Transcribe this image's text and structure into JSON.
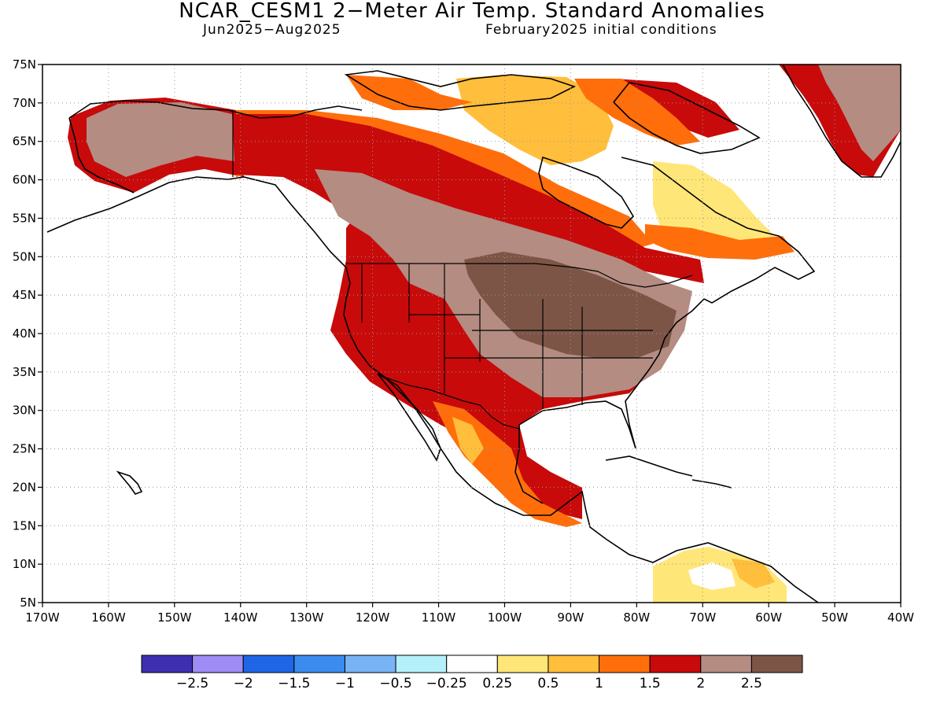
{
  "header": {
    "title": "NCAR_CESM1 2−Meter Air Temp. Standard Anomalies",
    "subtitle_left": "Jun2025−Aug2025",
    "subtitle_right": "February2025 initial conditions"
  },
  "map": {
    "lat_labels": [
      "75N",
      "70N",
      "65N",
      "60N",
      "55N",
      "50N",
      "45N",
      "40N",
      "35N",
      "30N",
      "25N",
      "20N",
      "15N",
      "10N",
      "5N"
    ],
    "lon_labels": [
      "170W",
      "160W",
      "150W",
      "140W",
      "130W",
      "120W",
      "110W",
      "100W",
      "90W",
      "80W",
      "70W",
      "60W",
      "50W",
      "40W"
    ],
    "lat_range": [
      5,
      75
    ],
    "lon_range": [
      -170,
      -40
    ],
    "grid": "dotted"
  },
  "colorbar": {
    "colors": [
      "#3d2fb0",
      "#a08cf5",
      "#1f66e6",
      "#3c8cf0",
      "#78b4f5",
      "#b4f0fa",
      "#ffffff",
      "#ffe678",
      "#ffbe3c",
      "#ff6e0a",
      "#c80a0a",
      "#b48c82",
      "#7d5546"
    ],
    "labels": [
      "−2.5",
      "−2",
      "−1.5",
      "−1",
      "−0.5",
      "−0.25",
      "0.25",
      "0.5",
      "1",
      "1.5",
      "2",
      "2.5"
    ]
  },
  "anomaly_regions": [
    {
      "name": "alaska-interior",
      "level": 2.5
    },
    {
      "name": "western-canada",
      "level": 2.5
    },
    {
      "name": "central-us",
      "level": 2.5
    },
    {
      "name": "west-coast-us",
      "level": 2
    },
    {
      "name": "eastern-canada",
      "level": 0.5
    },
    {
      "name": "greenland",
      "level": 2.5
    },
    {
      "name": "mexico",
      "level": 1.5
    },
    {
      "name": "northern-south-america",
      "level": 0.25
    }
  ]
}
